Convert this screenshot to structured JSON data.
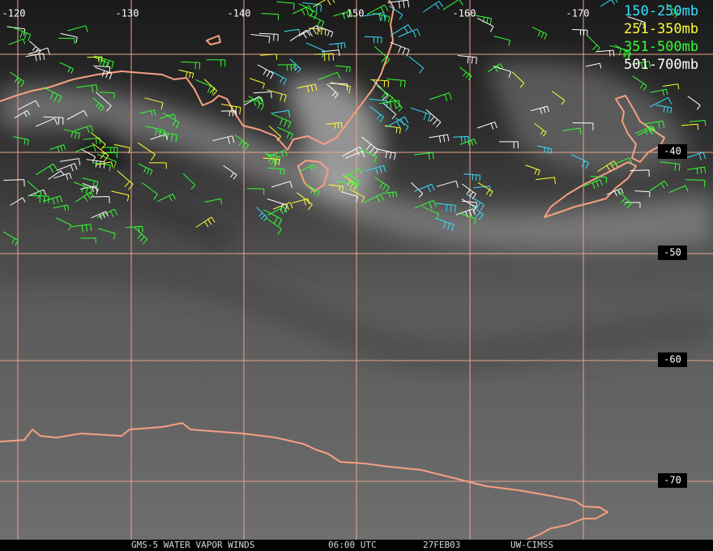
{
  "map": {
    "longitude_labels": [
      "-120",
      "-130",
      "-140",
      "-150",
      "-160",
      "-170"
    ],
    "latitude_labels": [
      "-40",
      "-50",
      "-60",
      "-70"
    ],
    "legend": [
      {
        "label": "150-250mb",
        "color": "#33e0ff"
      },
      {
        "label": "251-350mb",
        "color": "#ffff33"
      },
      {
        "label": "351-500mb",
        "color": "#33ff33"
      },
      {
        "label": "501-700mb",
        "color": "#ffffff"
      }
    ],
    "footer": [
      "GMS-5 WATER VAPOR WINDS",
      "06:00 UTC",
      "27FEB03",
      "UW-CIMSS"
    ]
  }
}
